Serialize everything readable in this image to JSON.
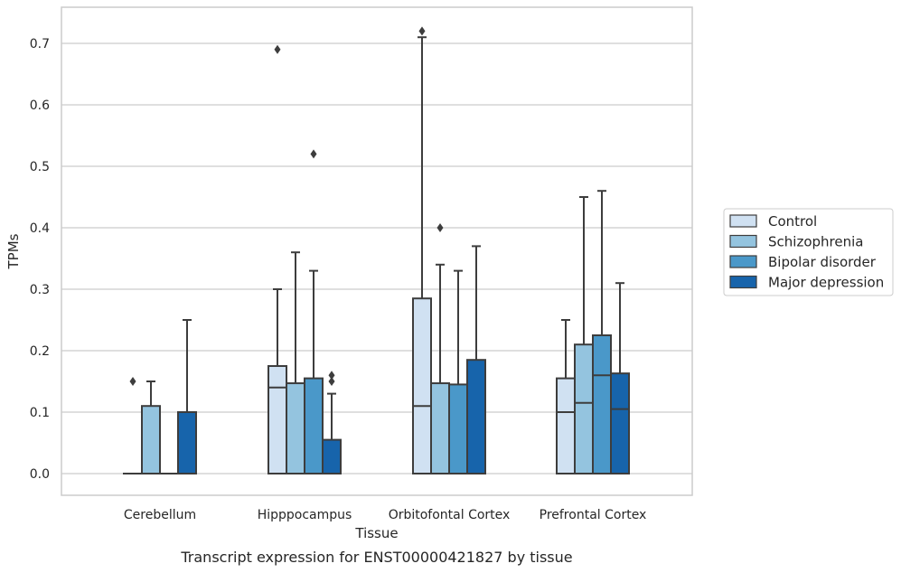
{
  "chart_data": {
    "type": "boxplot",
    "caption": "Transcript expression for ENST00000421827 by tissue",
    "xlabel": "Tissue",
    "ylabel": "TPMs",
    "ylim": [
      -0.035,
      0.755
    ],
    "yticks": [
      0.0,
      0.1,
      0.2,
      0.3,
      0.4,
      0.5,
      0.6,
      0.7
    ],
    "ytick_labels": [
      "0.0",
      "0.1",
      "0.2",
      "0.3",
      "0.4",
      "0.5",
      "0.6",
      "0.7"
    ],
    "grid": true,
    "legend_position": "right",
    "categories": [
      "Cerebellum",
      "Hipppocampus",
      "Orbitofontal Cortex",
      "Prefrontal Cortex"
    ],
    "series": [
      {
        "name": "Control",
        "color": "#d0e1f2",
        "boxes": [
          {
            "q1": 0.0,
            "median": 0.0,
            "q3": 0.0,
            "whislo": 0.0,
            "whishi": 0.0,
            "fliers": [
              0.15
            ]
          },
          {
            "q1": 0.0,
            "median": 0.14,
            "q3": 0.175,
            "whislo": 0.0,
            "whishi": 0.3,
            "fliers": [
              0.69
            ]
          },
          {
            "q1": 0.0,
            "median": 0.11,
            "q3": 0.285,
            "whislo": 0.0,
            "whishi": 0.71,
            "fliers": [
              0.72
            ]
          },
          {
            "q1": 0.0,
            "median": 0.1,
            "q3": 0.155,
            "whislo": 0.0,
            "whishi": 0.25,
            "fliers": []
          }
        ]
      },
      {
        "name": "Schizophrenia",
        "color": "#94c4df",
        "boxes": [
          {
            "q1": 0.0,
            "median": 0.0,
            "q3": 0.11,
            "whislo": 0.0,
            "whishi": 0.15,
            "fliers": []
          },
          {
            "q1": 0.0,
            "median": 0.0,
            "q3": 0.147,
            "whislo": 0.0,
            "whishi": 0.36,
            "fliers": []
          },
          {
            "q1": 0.0,
            "median": 0.0,
            "q3": 0.147,
            "whislo": 0.0,
            "whishi": 0.34,
            "fliers": [
              0.4
            ]
          },
          {
            "q1": 0.0,
            "median": 0.115,
            "q3": 0.21,
            "whislo": 0.0,
            "whishi": 0.45,
            "fliers": []
          }
        ]
      },
      {
        "name": "Bipolar disorder",
        "color": "#4a98c9",
        "boxes": [
          {
            "q1": 0.0,
            "median": 0.0,
            "q3": 0.0,
            "whislo": 0.0,
            "whishi": 0.0,
            "fliers": []
          },
          {
            "q1": 0.0,
            "median": 0.0,
            "q3": 0.155,
            "whislo": 0.0,
            "whishi": 0.33,
            "fliers": [
              0.52
            ]
          },
          {
            "q1": 0.0,
            "median": 0.0,
            "q3": 0.145,
            "whislo": 0.0,
            "whishi": 0.33,
            "fliers": []
          },
          {
            "q1": 0.0,
            "median": 0.16,
            "q3": 0.225,
            "whislo": 0.0,
            "whishi": 0.46,
            "fliers": []
          }
        ]
      },
      {
        "name": "Major depression",
        "color": "#1764ab",
        "boxes": [
          {
            "q1": 0.0,
            "median": 0.0,
            "q3": 0.1,
            "whislo": 0.0,
            "whishi": 0.25,
            "fliers": []
          },
          {
            "q1": 0.0,
            "median": 0.0,
            "q3": 0.055,
            "whislo": 0.0,
            "whishi": 0.13,
            "fliers": [
              0.15,
              0.16
            ]
          },
          {
            "q1": 0.0,
            "median": 0.0,
            "q3": 0.185,
            "whislo": 0.0,
            "whishi": 0.37,
            "fliers": []
          },
          {
            "q1": 0.0,
            "median": 0.105,
            "q3": 0.163,
            "whislo": 0.0,
            "whishi": 0.31,
            "fliers": []
          }
        ]
      }
    ]
  }
}
